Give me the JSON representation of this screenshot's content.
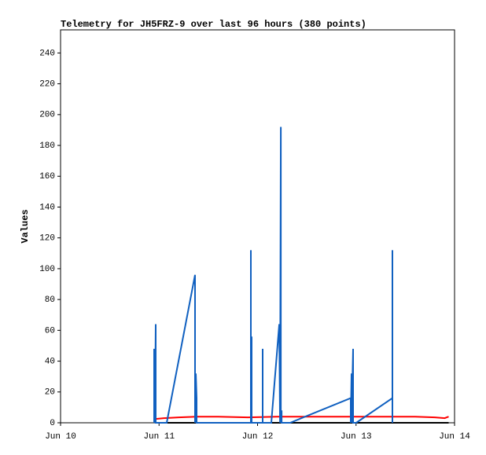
{
  "chart_data": {
    "type": "line",
    "title": "Telemetry for JH5FRZ-9 over last 96 hours (380 points)",
    "y_label": "Values",
    "xlim": [
      10,
      14
    ],
    "xticks": [
      {
        "value": 10,
        "label": "Jun 10"
      },
      {
        "value": 11,
        "label": "Jun 11"
      },
      {
        "value": 12,
        "label": "Jun 12"
      },
      {
        "value": 13,
        "label": "Jun 13"
      },
      {
        "value": 14,
        "label": "Jun 14"
      }
    ],
    "ylim": [
      0,
      255
    ],
    "yticks": [
      0,
      20,
      40,
      60,
      80,
      100,
      120,
      140,
      160,
      180,
      200,
      220,
      240
    ],
    "series": [
      {
        "color": "#000000",
        "x": [
          10.958,
          13.94
        ],
        "values": [
          0,
          0
        ]
      },
      {
        "color": "#ff0000",
        "x": [
          10.966,
          11.05,
          11.2,
          11.38,
          11.6,
          11.9,
          12.2,
          12.5,
          12.8,
          13.1,
          13.4,
          13.6,
          13.8,
          13.9,
          13.94
        ],
        "values": [
          2.5,
          3,
          3.5,
          4,
          4,
          3.5,
          4,
          4,
          4,
          4,
          4,
          4,
          3.5,
          3,
          4
        ]
      },
      {
        "color": "#1060c0",
        "x": [
          10.95,
          10.95,
          10.95,
          10.958,
          10.958,
          10.966,
          10.966,
          11.078,
          11.365,
          11.365,
          11.373,
          11.381,
          11.381,
          11.932,
          11.932,
          11.932,
          11.94,
          11.94,
          12.052,
          12.052,
          12.052,
          12.14,
          12.22,
          12.228,
          12.236,
          12.236,
          12.244,
          12.244,
          12.331,
          12.946,
          12.946,
          12.954,
          12.954,
          12.97,
          12.97,
          13.002,
          13.369,
          13.369,
          13.369
        ],
        "values": [
          0,
          48,
          0,
          32,
          0,
          64,
          0,
          0,
          96,
          0,
          32,
          16,
          0,
          0,
          112,
          0,
          56,
          0,
          0,
          48,
          0,
          0,
          64,
          0,
          192,
          0,
          8,
          0,
          0,
          16,
          0,
          32,
          0,
          48,
          0,
          0,
          16,
          112,
          0
        ]
      }
    ]
  }
}
